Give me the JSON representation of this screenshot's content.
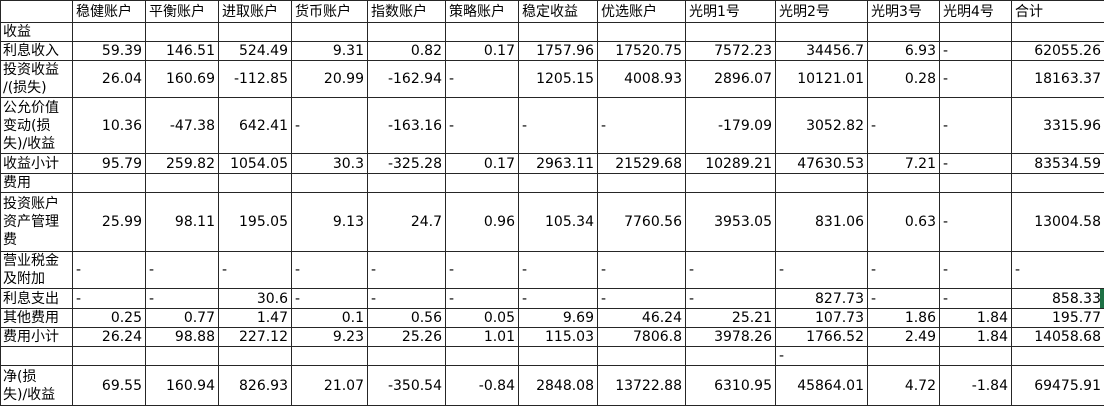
{
  "colors": {
    "grid": "#262626",
    "selection_green": "#1e7145",
    "background": "#ffffff",
    "text": "#000000"
  },
  "table": {
    "columns": [
      "",
      "稳健账户",
      "平衡账户",
      "进取账户",
      "货币账户",
      "指数账户",
      "策略账户",
      "稳定收益",
      "优选账户",
      "光明1号",
      "光明2号",
      "光明3号",
      "光明4号",
      "合计"
    ],
    "rows": [
      {
        "label": "收益",
        "type": "section-header",
        "values": [
          "",
          "",
          "",
          "",
          "",
          "",
          "",
          "",
          "",
          "",
          "",
          "",
          ""
        ]
      },
      {
        "label": "利息收入",
        "type": "data",
        "values": [
          "59.39",
          "146.51",
          "524.49",
          "9.31",
          "0.82",
          "0.17",
          "1757.96",
          "17520.75",
          "7572.23",
          "34456.7",
          "6.93",
          "-",
          "62055.26"
        ]
      },
      {
        "label": "投资收益\n/(损失)",
        "type": "data",
        "values": [
          "26.04",
          "160.69",
          "-112.85",
          "20.99",
          "-162.94",
          "-",
          "1205.15",
          "4008.93",
          "2896.07",
          "10121.01",
          "0.28",
          "-",
          "18163.37"
        ]
      },
      {
        "label": "公允价值\n变动(损\n失)/收益",
        "type": "data",
        "values": [
          "10.36",
          "-47.38",
          "642.41",
          "-",
          "-163.16",
          "-",
          "-",
          "-",
          "-179.09",
          "3052.82",
          "-",
          "-",
          "3315.96"
        ]
      },
      {
        "label": "收益小计",
        "type": "subtotal",
        "values": [
          "95.79",
          "259.82",
          "1054.05",
          "30.3",
          "-325.28",
          "0.17",
          "2963.11",
          "21529.68",
          "10289.21",
          "47630.53",
          "7.21",
          "-",
          "83534.59"
        ]
      },
      {
        "label": "费用",
        "type": "section-header",
        "values": [
          "",
          "",
          "",
          "",
          "",
          "",
          "",
          "",
          "",
          "",
          "",
          "",
          ""
        ]
      },
      {
        "label": "投资账户\n资产管理\n费",
        "type": "data",
        "values": [
          "25.99",
          "98.11",
          "195.05",
          "9.13",
          "24.7",
          "0.96",
          "105.34",
          "7760.56",
          "3953.05",
          "831.06",
          "0.63",
          "-",
          "13004.58"
        ]
      },
      {
        "label": "营业税金\n及附加",
        "type": "data",
        "values": [
          "-",
          "-",
          "-",
          "-",
          "-",
          "-",
          "-",
          "-",
          "-",
          "-",
          "-",
          "-",
          "-"
        ]
      },
      {
        "label": "利息支出",
        "type": "data",
        "values": [
          "-",
          "-",
          "30.6",
          "-",
          "-",
          "-",
          "-",
          "-",
          "-",
          "827.73",
          "-",
          "-",
          "858.33"
        ]
      },
      {
        "label": "其他费用",
        "type": "data",
        "values": [
          "0.25",
          "0.77",
          "1.47",
          "0.1",
          "0.56",
          "0.05",
          "9.69",
          "46.24",
          "25.21",
          "107.73",
          "1.86",
          "1.84",
          "195.77"
        ]
      },
      {
        "label": "费用小计",
        "type": "subtotal",
        "values": [
          "26.24",
          "98.88",
          "227.12",
          "9.23",
          "25.26",
          "1.01",
          "115.03",
          "7806.8",
          "3978.26",
          "1766.52",
          "2.49",
          "1.84",
          "14058.68"
        ]
      },
      {
        "label": "",
        "type": "spacer",
        "values": [
          "",
          "",
          "",
          "",
          "",
          "",
          "",
          "",
          "",
          "-",
          "",
          "",
          ""
        ]
      },
      {
        "label": "净(损\n失)/收益",
        "type": "total",
        "values": [
          "69.55",
          "160.94",
          "826.93",
          "21.07",
          "-350.54",
          "-0.84",
          "2848.08",
          "13722.88",
          "6310.95",
          "45864.01",
          "4.72",
          "-1.84",
          "69475.91"
        ]
      }
    ]
  },
  "selection": {
    "row": 8,
    "col": 12
  }
}
